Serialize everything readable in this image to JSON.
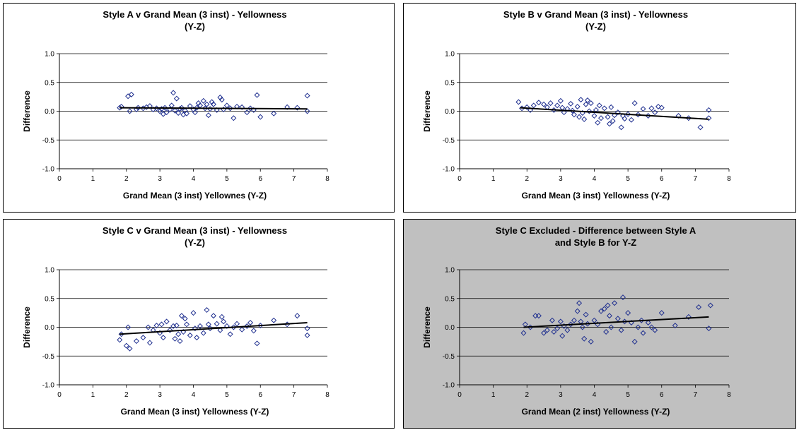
{
  "chart_data": [
    {
      "type": "scatter",
      "title_lines": [
        "Style A v Grand Mean (3 inst) - Yellowness",
        "(Y-Z)"
      ],
      "xlabel": "Grand Mean (3 inst) Yellownes (Y-Z)",
      "ylabel": "Difference",
      "xlim": [
        0,
        8
      ],
      "ylim": [
        -1.0,
        1.0
      ],
      "xticks": [
        "0",
        "1",
        "2",
        "3",
        "4",
        "5",
        "6",
        "7",
        "8"
      ],
      "yticks": [
        "1.0",
        "0.5",
        "0.0",
        "-0.5",
        "-1.0"
      ],
      "background": "#ffffff",
      "marker_color": "#1f2f8f",
      "grid": "horizontal",
      "trendline": {
        "x": [
          1.8,
          7.4
        ],
        "y": [
          0.06,
          0.04
        ]
      },
      "points": [
        [
          1.8,
          0.06
        ],
        [
          1.85,
          0.08
        ],
        [
          2.05,
          0.26
        ],
        [
          2.1,
          0.0
        ],
        [
          2.15,
          0.29
        ],
        [
          2.3,
          0.03
        ],
        [
          2.35,
          0.06
        ],
        [
          2.5,
          0.05
        ],
        [
          2.6,
          0.07
        ],
        [
          2.7,
          0.09
        ],
        [
          2.8,
          0.03
        ],
        [
          2.9,
          0.05
        ],
        [
          3.0,
          0.0
        ],
        [
          3.05,
          0.04
        ],
        [
          3.1,
          -0.05
        ],
        [
          3.15,
          0.06
        ],
        [
          3.2,
          -0.02
        ],
        [
          3.3,
          0.03
        ],
        [
          3.35,
          0.1
        ],
        [
          3.4,
          0.32
        ],
        [
          3.45,
          0.01
        ],
        [
          3.5,
          0.22
        ],
        [
          3.55,
          -0.03
        ],
        [
          3.6,
          0.04
        ],
        [
          3.65,
          0.06
        ],
        [
          3.7,
          -0.06
        ],
        [
          3.75,
          0.01
        ],
        [
          3.8,
          -0.04
        ],
        [
          3.9,
          0.09
        ],
        [
          4.0,
          0.03
        ],
        [
          4.05,
          -0.02
        ],
        [
          4.1,
          0.06
        ],
        [
          4.15,
          0.14
        ],
        [
          4.2,
          0.1
        ],
        [
          4.3,
          0.18
        ],
        [
          4.35,
          0.05
        ],
        [
          4.4,
          0.12
        ],
        [
          4.45,
          -0.07
        ],
        [
          4.5,
          0.04
        ],
        [
          4.55,
          0.16
        ],
        [
          4.6,
          0.12
        ],
        [
          4.7,
          0.02
        ],
        [
          4.8,
          0.24
        ],
        [
          4.85,
          0.2
        ],
        [
          4.9,
          0.03
        ],
        [
          5.0,
          0.1
        ],
        [
          5.1,
          0.05
        ],
        [
          5.2,
          -0.12
        ],
        [
          5.3,
          0.08
        ],
        [
          5.45,
          0.07
        ],
        [
          5.6,
          -0.02
        ],
        [
          5.7,
          0.05
        ],
        [
          5.8,
          0.02
        ],
        [
          5.9,
          0.28
        ],
        [
          6.0,
          -0.1
        ],
        [
          6.4,
          -0.04
        ],
        [
          6.8,
          0.07
        ],
        [
          7.1,
          0.06
        ],
        [
          7.4,
          0.27
        ],
        [
          7.4,
          0.0
        ]
      ]
    },
    {
      "type": "scatter",
      "title_lines": [
        "Style B v Grand Mean (3 inst) - Yellowness",
        "(Y-Z)"
      ],
      "xlabel": "Grand Mean (3 inst) Yellowness (Y-Z)",
      "ylabel": "Difference",
      "xlim": [
        0,
        8
      ],
      "ylim": [
        -1.0,
        1.0
      ],
      "xticks": [
        "0",
        "1",
        "2",
        "3",
        "4",
        "5",
        "6",
        "7",
        "8"
      ],
      "yticks": [
        "1.0",
        "0.5",
        "0.0",
        "-0.5",
        "-1.0"
      ],
      "background": "#ffffff",
      "marker_color": "#1f2f8f",
      "grid": "horizontal",
      "trendline": {
        "x": [
          1.8,
          7.4
        ],
        "y": [
          0.06,
          -0.14
        ]
      },
      "points": [
        [
          1.75,
          0.16
        ],
        [
          1.85,
          0.05
        ],
        [
          2.0,
          0.07
        ],
        [
          2.1,
          0.02
        ],
        [
          2.2,
          0.1
        ],
        [
          2.35,
          0.15
        ],
        [
          2.5,
          0.12
        ],
        [
          2.6,
          0.07
        ],
        [
          2.7,
          0.14
        ],
        [
          2.8,
          0.02
        ],
        [
          2.9,
          0.1
        ],
        [
          3.0,
          0.18
        ],
        [
          3.05,
          0.06
        ],
        [
          3.1,
          -0.02
        ],
        [
          3.2,
          0.04
        ],
        [
          3.3,
          0.13
        ],
        [
          3.35,
          0.01
        ],
        [
          3.4,
          -0.06
        ],
        [
          3.5,
          0.08
        ],
        [
          3.55,
          -0.1
        ],
        [
          3.6,
          0.2
        ],
        [
          3.65,
          -0.03
        ],
        [
          3.7,
          -0.14
        ],
        [
          3.75,
          0.12
        ],
        [
          3.8,
          0.19
        ],
        [
          3.85,
          0.0
        ],
        [
          3.9,
          0.14
        ],
        [
          4.0,
          -0.08
        ],
        [
          4.05,
          0.02
        ],
        [
          4.1,
          -0.2
        ],
        [
          4.15,
          0.1
        ],
        [
          4.2,
          -0.12
        ],
        [
          4.3,
          0.05
        ],
        [
          4.4,
          -0.1
        ],
        [
          4.45,
          -0.22
        ],
        [
          4.5,
          0.07
        ],
        [
          4.55,
          -0.17
        ],
        [
          4.6,
          -0.07
        ],
        [
          4.7,
          -0.02
        ],
        [
          4.8,
          -0.28
        ],
        [
          4.85,
          -0.08
        ],
        [
          4.9,
          -0.13
        ],
        [
          5.0,
          -0.05
        ],
        [
          5.1,
          -0.15
        ],
        [
          5.2,
          0.14
        ],
        [
          5.3,
          -0.06
        ],
        [
          5.45,
          0.04
        ],
        [
          5.6,
          -0.08
        ],
        [
          5.7,
          0.05
        ],
        [
          5.8,
          -0.02
        ],
        [
          5.9,
          0.08
        ],
        [
          6.0,
          0.06
        ],
        [
          6.5,
          -0.08
        ],
        [
          6.8,
          -0.12
        ],
        [
          7.15,
          -0.28
        ],
        [
          7.4,
          -0.12
        ],
        [
          7.4,
          0.02
        ]
      ]
    },
    {
      "type": "scatter",
      "title_lines": [
        "Style C v Grand Mean (3 inst) - Yellowness",
        "(Y-Z)"
      ],
      "xlabel": "Grand Mean (3 inst) Yellowness (Y-Z)",
      "ylabel": "Difference",
      "xlim": [
        0,
        8
      ],
      "ylim": [
        -1.0,
        1.0
      ],
      "xticks": [
        "0",
        "1",
        "2",
        "3",
        "4",
        "5",
        "6",
        "7",
        "8"
      ],
      "yticks": [
        "1.0",
        "0.5",
        "0.0",
        "-0.5",
        "-1.0"
      ],
      "background": "#ffffff",
      "marker_color": "#1f2f8f",
      "grid": "horizontal",
      "trendline": {
        "x": [
          1.8,
          7.4
        ],
        "y": [
          -0.12,
          0.08
        ]
      },
      "points": [
        [
          1.8,
          -0.22
        ],
        [
          1.85,
          -0.12
        ],
        [
          2.0,
          -0.32
        ],
        [
          2.05,
          0.0
        ],
        [
          2.1,
          -0.37
        ],
        [
          2.3,
          -0.24
        ],
        [
          2.5,
          -0.18
        ],
        [
          2.65,
          0.0
        ],
        [
          2.7,
          -0.27
        ],
        [
          2.8,
          -0.05
        ],
        [
          2.9,
          0.03
        ],
        [
          3.0,
          -0.1
        ],
        [
          3.05,
          0.05
        ],
        [
          3.1,
          -0.18
        ],
        [
          3.2,
          0.1
        ],
        [
          3.3,
          -0.05
        ],
        [
          3.4,
          0.02
        ],
        [
          3.45,
          -0.2
        ],
        [
          3.5,
          0.03
        ],
        [
          3.55,
          -0.12
        ],
        [
          3.6,
          -0.24
        ],
        [
          3.65,
          0.2
        ],
        [
          3.7,
          -0.08
        ],
        [
          3.75,
          0.15
        ],
        [
          3.8,
          0.05
        ],
        [
          3.9,
          -0.14
        ],
        [
          4.0,
          0.25
        ],
        [
          4.05,
          -0.02
        ],
        [
          4.1,
          -0.18
        ],
        [
          4.2,
          0.02
        ],
        [
          4.3,
          -0.1
        ],
        [
          4.4,
          0.3
        ],
        [
          4.45,
          0.05
        ],
        [
          4.5,
          -0.02
        ],
        [
          4.6,
          0.2
        ],
        [
          4.7,
          0.06
        ],
        [
          4.8,
          -0.05
        ],
        [
          4.85,
          0.18
        ],
        [
          4.9,
          0.1
        ],
        [
          5.0,
          0.02
        ],
        [
          5.1,
          -0.12
        ],
        [
          5.2,
          0.0
        ],
        [
          5.3,
          0.06
        ],
        [
          5.45,
          -0.04
        ],
        [
          5.6,
          0.02
        ],
        [
          5.7,
          0.08
        ],
        [
          5.8,
          -0.06
        ],
        [
          5.9,
          -0.28
        ],
        [
          6.0,
          0.03
        ],
        [
          6.4,
          0.12
        ],
        [
          6.8,
          0.05
        ],
        [
          7.1,
          0.2
        ],
        [
          7.4,
          -0.14
        ],
        [
          7.4,
          -0.02
        ]
      ]
    },
    {
      "type": "scatter",
      "title_lines": [
        "Style C Excluded - Difference between Style A",
        "and Style B for Y-Z"
      ],
      "xlabel": "Grand Mean (2 inst) Yellowness (Y-Z)",
      "ylabel": "Difference",
      "xlim": [
        0,
        8
      ],
      "ylim": [
        -1.0,
        1.0
      ],
      "xticks": [
        "0",
        "1",
        "2",
        "3",
        "4",
        "5",
        "6",
        "7",
        "8"
      ],
      "yticks": [
        "1.0",
        "0.5",
        "0.0",
        "-0.5",
        "-1.0"
      ],
      "background": "#c0c0c0",
      "marker_color": "#1f2f8f",
      "grid": "horizontal",
      "trendline": {
        "x": [
          1.9,
          7.4
        ],
        "y": [
          0.0,
          0.18
        ]
      },
      "points": [
        [
          1.9,
          -0.1
        ],
        [
          1.95,
          0.05
        ],
        [
          2.1,
          0.0
        ],
        [
          2.25,
          0.2
        ],
        [
          2.35,
          0.2
        ],
        [
          2.5,
          -0.1
        ],
        [
          2.6,
          -0.05
        ],
        [
          2.75,
          0.12
        ],
        [
          2.8,
          -0.08
        ],
        [
          2.9,
          -0.02
        ],
        [
          3.0,
          0.1
        ],
        [
          3.05,
          -0.15
        ],
        [
          3.1,
          0.02
        ],
        [
          3.2,
          -0.05
        ],
        [
          3.3,
          0.05
        ],
        [
          3.4,
          0.12
        ],
        [
          3.5,
          0.28
        ],
        [
          3.55,
          0.42
        ],
        [
          3.6,
          0.1
        ],
        [
          3.65,
          0.0
        ],
        [
          3.7,
          -0.2
        ],
        [
          3.75,
          0.22
        ],
        [
          3.8,
          0.06
        ],
        [
          3.9,
          -0.25
        ],
        [
          4.0,
          0.12
        ],
        [
          4.1,
          0.05
        ],
        [
          4.2,
          0.28
        ],
        [
          4.3,
          0.32
        ],
        [
          4.35,
          -0.08
        ],
        [
          4.4,
          0.38
        ],
        [
          4.45,
          0.2
        ],
        [
          4.5,
          0.0
        ],
        [
          4.6,
          0.42
        ],
        [
          4.7,
          0.15
        ],
        [
          4.8,
          -0.05
        ],
        [
          4.85,
          0.52
        ],
        [
          4.9,
          0.1
        ],
        [
          5.0,
          0.25
        ],
        [
          5.1,
          0.08
        ],
        [
          5.2,
          -0.25
        ],
        [
          5.3,
          0.0
        ],
        [
          5.4,
          0.12
        ],
        [
          5.45,
          -0.1
        ],
        [
          5.6,
          0.08
        ],
        [
          5.7,
          0.0
        ],
        [
          5.8,
          -0.05
        ],
        [
          6.0,
          0.25
        ],
        [
          6.4,
          0.03
        ],
        [
          6.8,
          0.18
        ],
        [
          7.1,
          0.35
        ],
        [
          7.4,
          -0.02
        ],
        [
          7.45,
          0.38
        ]
      ]
    }
  ]
}
